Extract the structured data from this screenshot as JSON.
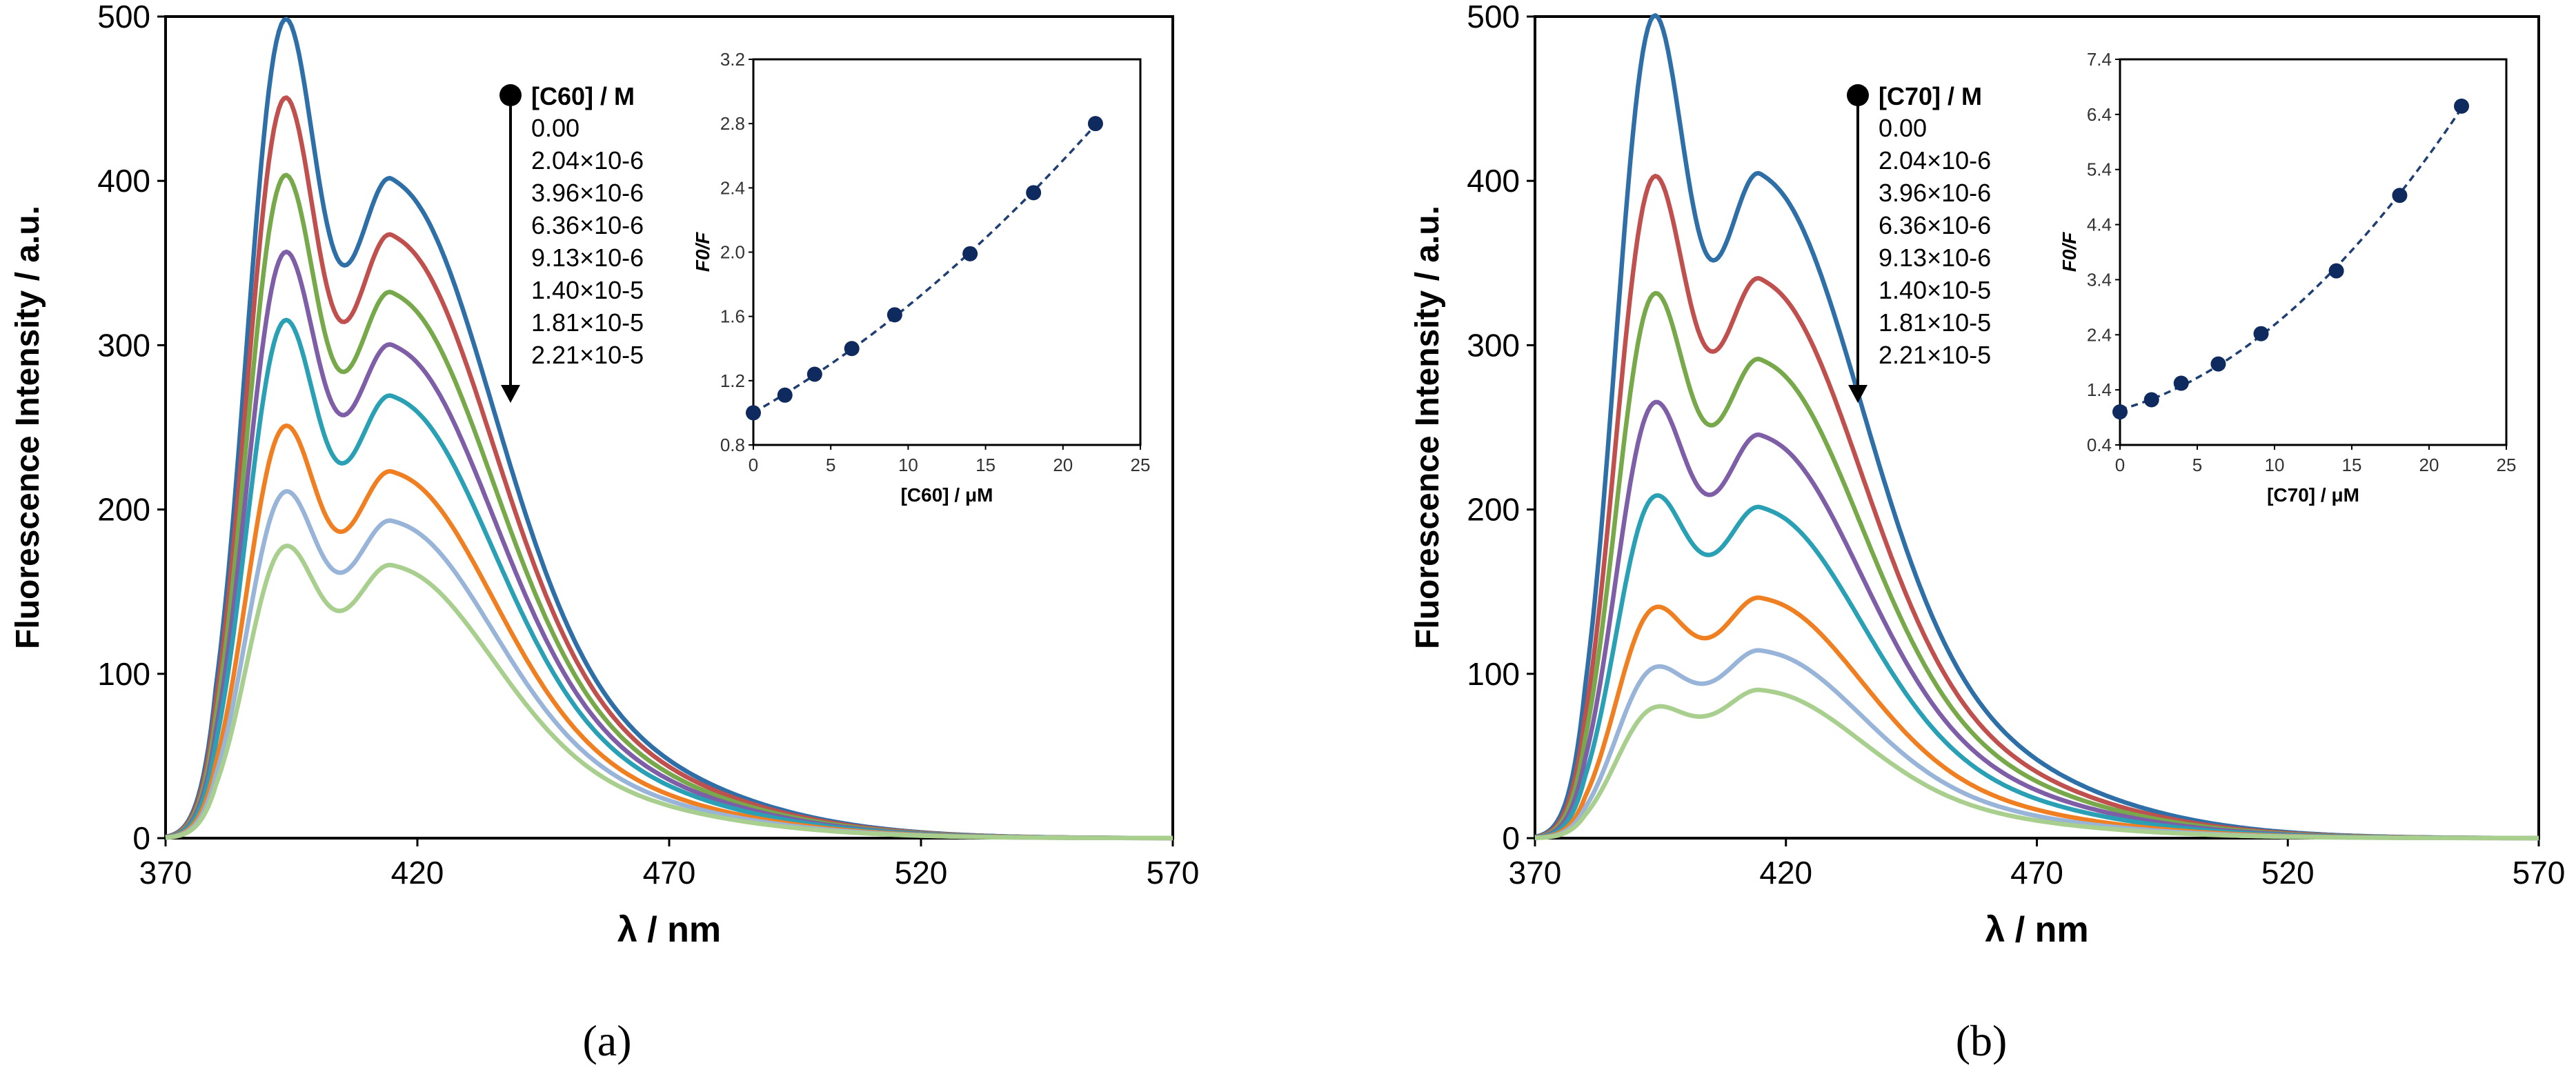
{
  "chart_data": [
    {
      "type": "line",
      "title": "",
      "caption": "(a)",
      "xlabel": "λ / nm",
      "ylabel": "Fluorescence Intensity / a.u.",
      "xlim": [
        370,
        570
      ],
      "ylim": [
        0,
        500
      ],
      "xticks": [
        "370",
        "420",
        "470",
        "520",
        "570"
      ],
      "yticks": [
        "0",
        "100",
        "200",
        "300",
        "400",
        "500"
      ],
      "legend_title": "[C60] / M",
      "legend_entries": [
        "0.00",
        "2.04×10-6",
        "3.96×10-6",
        "6.36×10-6",
        "9.13×10-6",
        "1.40×10-5",
        "1.81×10-5",
        "2.21×10-5"
      ],
      "series": [
        {
          "name": "0.00",
          "color": "#2e6fa8",
          "peak1": 495,
          "valley": 362,
          "peak2": 401
        },
        {
          "name": "2.04×10-6",
          "color": "#c0504d",
          "peak1": 448,
          "valley": 325,
          "peak2": 367
        },
        {
          "name": "3.96×10-6",
          "color": "#77a84a",
          "peak1": 401,
          "valley": 293,
          "peak2": 332
        },
        {
          "name": "6.36×10-6",
          "color": "#7e5ea6",
          "peak1": 354,
          "valley": 265,
          "peak2": 300
        },
        {
          "name": "9.13×10-6",
          "color": "#2aa0b5",
          "peak1": 313,
          "valley": 234,
          "peak2": 269
        },
        {
          "name": "1.40×10-5",
          "color": "#f07f22",
          "peak1": 249,
          "valley": 190,
          "peak2": 223
        },
        {
          "name": "1.81×10-5",
          "color": "#98b4d8",
          "peak1": 209,
          "valley": 164,
          "peak2": 193
        },
        {
          "name": "2.21×10-5",
          "color": "#a9cf8e",
          "peak1": 176,
          "valley": 140,
          "peak2": 166
        }
      ],
      "inset": {
        "type": "scatter",
        "xlabel": "[C60] / μM",
        "ylabel": "F0/F",
        "xlim": [
          0,
          25
        ],
        "ylim": [
          0.8,
          3.2
        ],
        "xticks": [
          "0",
          "5",
          "10",
          "15",
          "20",
          "25"
        ],
        "yticks": [
          "0.8",
          "1.2",
          "1.6",
          "2.0",
          "2.4",
          "2.8",
          "3.2"
        ],
        "x": [
          0,
          2.04,
          3.96,
          6.36,
          9.13,
          14.0,
          18.1,
          22.1
        ],
        "y": [
          1.0,
          1.11,
          1.24,
          1.4,
          1.61,
          1.99,
          2.37,
          2.8
        ],
        "fit": "quadratic"
      }
    },
    {
      "type": "line",
      "title": "",
      "caption": "(b)",
      "xlabel": "λ / nm",
      "ylabel": "Fluorescence Intensity / a.u.",
      "xlim": [
        370,
        570
      ],
      "ylim": [
        0,
        500
      ],
      "xticks": [
        "370",
        "420",
        "470",
        "520",
        "570"
      ],
      "yticks": [
        "0",
        "100",
        "200",
        "300",
        "400",
        "500"
      ],
      "legend_title": "[C70] / M",
      "legend_entries": [
        "0.00",
        "2.04×10-6",
        "3.96×10-6",
        "6.36×10-6",
        "9.13×10-6",
        "1.40×10-5",
        "1.81×10-5",
        "2.21×10-5"
      ],
      "series": [
        {
          "name": "0.00",
          "color": "#2e6fa8",
          "peak1": 497,
          "valley": 365,
          "peak2": 404
        },
        {
          "name": "2.04×10-6",
          "color": "#c0504d",
          "peak1": 399,
          "valley": 305,
          "peak2": 340
        },
        {
          "name": "3.96×10-6",
          "color": "#77a84a",
          "peak1": 328,
          "valley": 257,
          "peak2": 291
        },
        {
          "name": "6.36×10-6",
          "color": "#7e5ea6",
          "peak1": 262,
          "valley": 212,
          "peak2": 245
        },
        {
          "name": "9.13×10-6",
          "color": "#2aa0b5",
          "peak1": 205,
          "valley": 174,
          "peak2": 201
        },
        {
          "name": "1.40×10-5",
          "color": "#f07f22",
          "peak1": 138,
          "valley": 122,
          "peak2": 146
        },
        {
          "name": "1.81×10-5",
          "color": "#98b4d8",
          "peak1": 102,
          "valley": 94,
          "peak2": 114
        },
        {
          "name": "2.21×10-5",
          "color": "#a9cf8e",
          "peak1": 78,
          "valley": 74,
          "peak2": 90
        }
      ],
      "inset": {
        "type": "scatter",
        "xlabel": "[C70] / μM",
        "ylabel": "F0/F",
        "xlim": [
          0,
          25
        ],
        "ylim": [
          0.4,
          7.4
        ],
        "xticks": [
          "0",
          "5",
          "10",
          "15",
          "20",
          "25"
        ],
        "yticks": [
          "0.4",
          "1.4",
          "2.4",
          "3.4",
          "4.4",
          "5.4",
          "6.4",
          "7.4"
        ],
        "x": [
          0,
          2.04,
          3.96,
          6.36,
          9.13,
          14.0,
          18.1,
          22.1
        ],
        "y": [
          1.0,
          1.22,
          1.52,
          1.87,
          2.42,
          3.56,
          4.93,
          6.55
        ],
        "fit": "quadratic"
      }
    }
  ]
}
